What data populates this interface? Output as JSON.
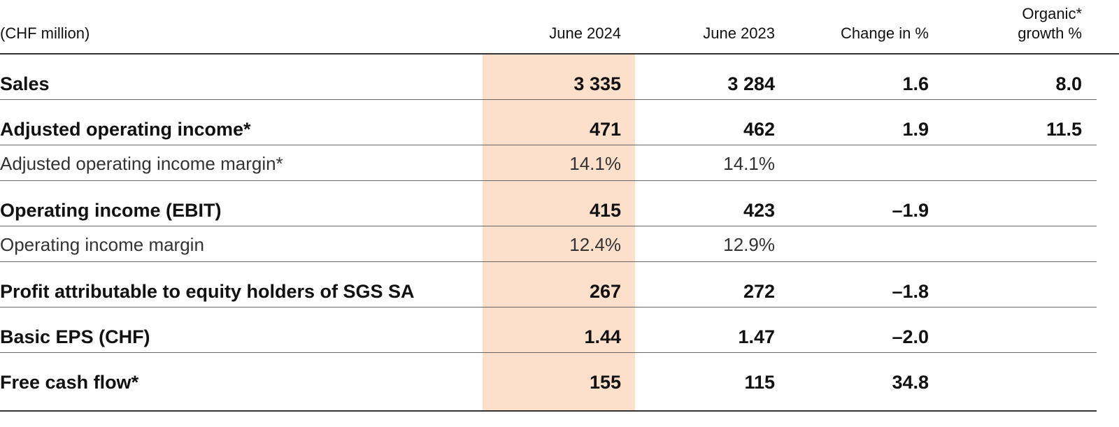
{
  "table": {
    "header": [
      "(CHF million)",
      "June 2024",
      "June 2023",
      "Change in %",
      "Organic* growth %"
    ],
    "rows": [
      {
        "label": "Sales",
        "bold": true,
        "cells": [
          "3 335",
          "3 284",
          "1.6",
          "8.0"
        ]
      },
      {
        "label": "Adjusted operating income*",
        "bold": true,
        "cells": [
          "471",
          "462",
          "1.9",
          "11.5"
        ]
      },
      {
        "label": "Adjusted operating income margin*",
        "bold": false,
        "cells": [
          "14.1%",
          "14.1%"
        ]
      },
      {
        "label": "Operating income (EBIT)",
        "bold": true,
        "cells": [
          "415",
          "423",
          "–1.9"
        ]
      },
      {
        "label": "Operating income margin",
        "bold": false,
        "cells": [
          "12.4%",
          "12.9%"
        ]
      },
      {
        "label": "Profit attributable to equity holders of SGS SA",
        "bold": true,
        "cells": [
          "267",
          "272",
          "–1.8"
        ]
      },
      {
        "label": "Basic EPS (CHF)",
        "bold": true,
        "cells": [
          "1.44",
          "1.47",
          "–2.0"
        ]
      },
      {
        "label": "Free cash flow*",
        "bold": true,
        "cells": [
          "155",
          "115",
          "34.8"
        ]
      }
    ]
  }
}
